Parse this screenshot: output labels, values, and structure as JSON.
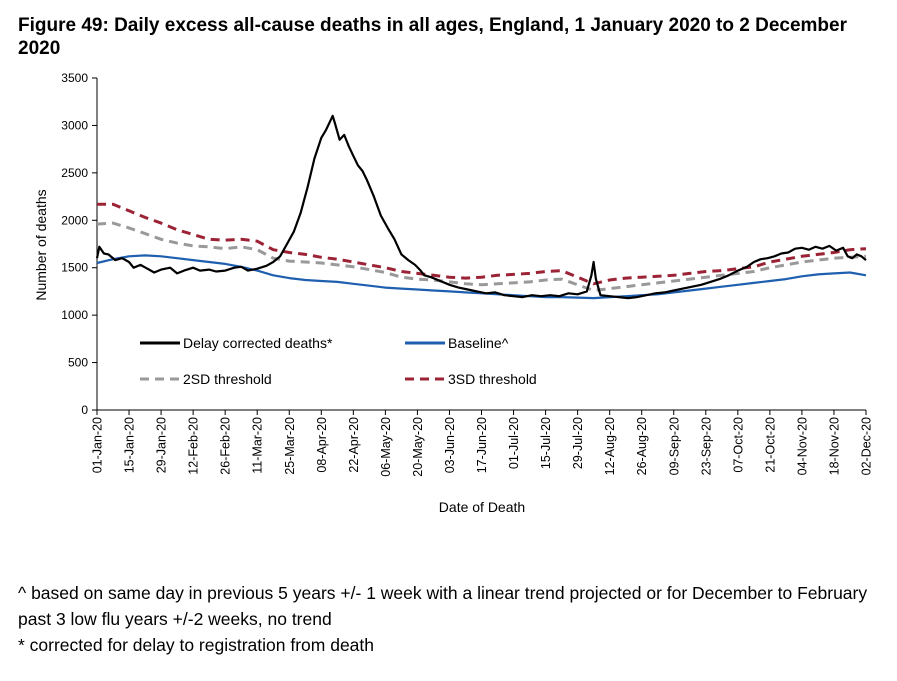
{
  "figure": {
    "title": "Figure 49: Daily excess all-cause deaths in all ages, England, 1 January 2020 to 2 December 2020"
  },
  "notes": [
    "^ based on same day in previous 5 years +/- 1 week with a linear trend projected or for December to February past 3 low flu years +/-2 weeks, no trend",
    "* corrected for delay to registration from death"
  ],
  "chart_data": {
    "type": "line",
    "title": "Figure 49: Daily excess all-cause deaths in all ages, England, 1 January 2020 to 2 December 2020",
    "xlabel": "Date of Death",
    "ylabel": "Number of deaths",
    "ylim": [
      0,
      3500
    ],
    "yticks": [
      0,
      500,
      1000,
      1500,
      2000,
      2500,
      3000,
      3500
    ],
    "x_start": "2020-01-01",
    "x_end": "2020-12-02",
    "x_tick_labels": [
      "01-Jan-20",
      "15-Jan-20",
      "29-Jan-20",
      "12-Feb-20",
      "26-Feb-20",
      "11-Mar-20",
      "25-Mar-20",
      "08-Apr-20",
      "22-Apr-20",
      "06-May-20",
      "20-May-20",
      "03-Jun-20",
      "17-Jun-20",
      "01-Jul-20",
      "15-Jul-20",
      "29-Jul-20",
      "12-Aug-20",
      "26-Aug-20",
      "09-Sep-20",
      "23-Sep-20",
      "07-Oct-20",
      "21-Oct-20",
      "04-Nov-20",
      "18-Nov-20",
      "02-Dec-20"
    ],
    "legend": [
      {
        "name": "Delay corrected deaths*",
        "color": "#000000",
        "dash": "solid"
      },
      {
        "name": "Baseline^",
        "color": "#1f5fb0",
        "dash": "solid"
      },
      {
        "name": "2SD threshold",
        "color": "#999999",
        "dash": "dashed"
      },
      {
        "name": "3SD threshold",
        "color": "#9b2335",
        "dash": "dashed"
      }
    ],
    "series": [
      {
        "name": "Delay corrected deaths*",
        "color": "#000000",
        "dash": "solid",
        "points": [
          [
            0,
            1600
          ],
          [
            1,
            1720
          ],
          [
            3,
            1650
          ],
          [
            5,
            1640
          ],
          [
            8,
            1580
          ],
          [
            11,
            1600
          ],
          [
            14,
            1560
          ],
          [
            16,
            1500
          ],
          [
            19,
            1530
          ],
          [
            22,
            1490
          ],
          [
            25,
            1450
          ],
          [
            28,
            1480
          ],
          [
            32,
            1500
          ],
          [
            35,
            1440
          ],
          [
            38,
            1470
          ],
          [
            42,
            1500
          ],
          [
            45,
            1470
          ],
          [
            49,
            1480
          ],
          [
            52,
            1460
          ],
          [
            56,
            1470
          ],
          [
            60,
            1500
          ],
          [
            63,
            1510
          ],
          [
            66,
            1470
          ],
          [
            70,
            1490
          ],
          [
            74,
            1520
          ],
          [
            77,
            1560
          ],
          [
            80,
            1620
          ],
          [
            83,
            1750
          ],
          [
            86,
            1880
          ],
          [
            89,
            2080
          ],
          [
            92,
            2350
          ],
          [
            95,
            2650
          ],
          [
            98,
            2870
          ],
          [
            100,
            2950
          ],
          [
            102,
            3050
          ],
          [
            103,
            3100
          ],
          [
            104,
            3020
          ],
          [
            106,
            2850
          ],
          [
            108,
            2900
          ],
          [
            110,
            2780
          ],
          [
            112,
            2680
          ],
          [
            114,
            2580
          ],
          [
            116,
            2520
          ],
          [
            118,
            2420
          ],
          [
            121,
            2250
          ],
          [
            124,
            2050
          ],
          [
            127,
            1920
          ],
          [
            130,
            1800
          ],
          [
            133,
            1640
          ],
          [
            136,
            1580
          ],
          [
            139,
            1530
          ],
          [
            141,
            1480
          ],
          [
            143,
            1420
          ],
          [
            146,
            1400
          ],
          [
            150,
            1360
          ],
          [
            154,
            1320
          ],
          [
            158,
            1290
          ],
          [
            162,
            1270
          ],
          [
            166,
            1250
          ],
          [
            170,
            1230
          ],
          [
            174,
            1240
          ],
          [
            178,
            1210
          ],
          [
            182,
            1200
          ],
          [
            186,
            1190
          ],
          [
            190,
            1210
          ],
          [
            194,
            1200
          ],
          [
            198,
            1210
          ],
          [
            202,
            1200
          ],
          [
            206,
            1230
          ],
          [
            210,
            1220
          ],
          [
            214,
            1250
          ],
          [
            216,
            1420
          ],
          [
            217,
            1560
          ],
          [
            218,
            1380
          ],
          [
            220,
            1210
          ],
          [
            224,
            1200
          ],
          [
            228,
            1190
          ],
          [
            232,
            1180
          ],
          [
            236,
            1190
          ],
          [
            240,
            1210
          ],
          [
            244,
            1230
          ],
          [
            248,
            1240
          ],
          [
            252,
            1260
          ],
          [
            256,
            1280
          ],
          [
            260,
            1300
          ],
          [
            264,
            1320
          ],
          [
            268,
            1350
          ],
          [
            272,
            1380
          ],
          [
            276,
            1420
          ],
          [
            280,
            1470
          ],
          [
            284,
            1510
          ],
          [
            287,
            1560
          ],
          [
            290,
            1590
          ],
          [
            293,
            1600
          ],
          [
            296,
            1620
          ],
          [
            299,
            1650
          ],
          [
            302,
            1660
          ],
          [
            305,
            1700
          ],
          [
            308,
            1710
          ],
          [
            311,
            1690
          ],
          [
            314,
            1720
          ],
          [
            317,
            1700
          ],
          [
            320,
            1730
          ],
          [
            323,
            1680
          ],
          [
            326,
            1710
          ],
          [
            328,
            1620
          ],
          [
            330,
            1600
          ],
          [
            332,
            1640
          ],
          [
            334,
            1620
          ],
          [
            336,
            1580
          ]
        ]
      },
      {
        "name": "Baseline^",
        "color": "#1f5fb0",
        "dash": "solid",
        "points": [
          [
            0,
            1550
          ],
          [
            7,
            1590
          ],
          [
            14,
            1620
          ],
          [
            21,
            1630
          ],
          [
            28,
            1620
          ],
          [
            35,
            1600
          ],
          [
            42,
            1580
          ],
          [
            49,
            1560
          ],
          [
            56,
            1540
          ],
          [
            63,
            1510
          ],
          [
            70,
            1470
          ],
          [
            77,
            1420
          ],
          [
            84,
            1390
          ],
          [
            91,
            1370
          ],
          [
            98,
            1360
          ],
          [
            105,
            1350
          ],
          [
            112,
            1330
          ],
          [
            119,
            1310
          ],
          [
            126,
            1290
          ],
          [
            133,
            1280
          ],
          [
            140,
            1270
          ],
          [
            147,
            1260
          ],
          [
            154,
            1250
          ],
          [
            161,
            1240
          ],
          [
            168,
            1230
          ],
          [
            175,
            1220
          ],
          [
            182,
            1210
          ],
          [
            189,
            1200
          ],
          [
            196,
            1190
          ],
          [
            203,
            1190
          ],
          [
            210,
            1185
          ],
          [
            217,
            1180
          ],
          [
            224,
            1190
          ],
          [
            231,
            1200
          ],
          [
            238,
            1210
          ],
          [
            245,
            1220
          ],
          [
            252,
            1240
          ],
          [
            259,
            1260
          ],
          [
            266,
            1280
          ],
          [
            273,
            1300
          ],
          [
            280,
            1320
          ],
          [
            287,
            1340
          ],
          [
            294,
            1360
          ],
          [
            301,
            1380
          ],
          [
            308,
            1410
          ],
          [
            315,
            1430
          ],
          [
            322,
            1440
          ],
          [
            329,
            1450
          ],
          [
            336,
            1420
          ]
        ]
      },
      {
        "name": "2SD threshold",
        "color": "#999999",
        "dash": "dashed",
        "points": [
          [
            0,
            1960
          ],
          [
            7,
            1970
          ],
          [
            14,
            1920
          ],
          [
            21,
            1860
          ],
          [
            28,
            1800
          ],
          [
            35,
            1760
          ],
          [
            42,
            1730
          ],
          [
            49,
            1720
          ],
          [
            56,
            1700
          ],
          [
            63,
            1720
          ],
          [
            70,
            1690
          ],
          [
            77,
            1600
          ],
          [
            84,
            1570
          ],
          [
            91,
            1560
          ],
          [
            98,
            1550
          ],
          [
            105,
            1530
          ],
          [
            112,
            1510
          ],
          [
            119,
            1480
          ],
          [
            126,
            1450
          ],
          [
            133,
            1400
          ],
          [
            140,
            1380
          ],
          [
            147,
            1370
          ],
          [
            154,
            1350
          ],
          [
            161,
            1330
          ],
          [
            168,
            1320
          ],
          [
            175,
            1330
          ],
          [
            182,
            1340
          ],
          [
            189,
            1350
          ],
          [
            196,
            1370
          ],
          [
            203,
            1380
          ],
          [
            210,
            1320
          ],
          [
            217,
            1260
          ],
          [
            224,
            1280
          ],
          [
            231,
            1300
          ],
          [
            238,
            1320
          ],
          [
            245,
            1340
          ],
          [
            252,
            1360
          ],
          [
            259,
            1380
          ],
          [
            266,
            1400
          ],
          [
            273,
            1420
          ],
          [
            280,
            1440
          ],
          [
            287,
            1460
          ],
          [
            294,
            1500
          ],
          [
            301,
            1530
          ],
          [
            308,
            1560
          ],
          [
            315,
            1580
          ],
          [
            322,
            1600
          ],
          [
            329,
            1610
          ],
          [
            336,
            1620
          ]
        ]
      },
      {
        "name": "3SD threshold",
        "color": "#9b2335",
        "dash": "dashed",
        "points": [
          [
            0,
            2170
          ],
          [
            7,
            2170
          ],
          [
            14,
            2100
          ],
          [
            21,
            2030
          ],
          [
            28,
            1970
          ],
          [
            35,
            1900
          ],
          [
            42,
            1850
          ],
          [
            49,
            1800
          ],
          [
            56,
            1790
          ],
          [
            63,
            1800
          ],
          [
            70,
            1780
          ],
          [
            77,
            1690
          ],
          [
            84,
            1660
          ],
          [
            91,
            1640
          ],
          [
            98,
            1610
          ],
          [
            105,
            1590
          ],
          [
            112,
            1560
          ],
          [
            119,
            1530
          ],
          [
            126,
            1500
          ],
          [
            133,
            1460
          ],
          [
            140,
            1440
          ],
          [
            147,
            1420
          ],
          [
            154,
            1400
          ],
          [
            161,
            1390
          ],
          [
            168,
            1400
          ],
          [
            175,
            1420
          ],
          [
            182,
            1430
          ],
          [
            189,
            1440
          ],
          [
            196,
            1460
          ],
          [
            203,
            1470
          ],
          [
            210,
            1400
          ],
          [
            217,
            1330
          ],
          [
            224,
            1370
          ],
          [
            231,
            1390
          ],
          [
            238,
            1400
          ],
          [
            245,
            1410
          ],
          [
            252,
            1420
          ],
          [
            259,
            1440
          ],
          [
            266,
            1460
          ],
          [
            273,
            1470
          ],
          [
            280,
            1490
          ],
          [
            287,
            1510
          ],
          [
            294,
            1560
          ],
          [
            301,
            1590
          ],
          [
            308,
            1620
          ],
          [
            315,
            1640
          ],
          [
            322,
            1660
          ],
          [
            329,
            1690
          ],
          [
            336,
            1700
          ]
        ]
      }
    ]
  }
}
